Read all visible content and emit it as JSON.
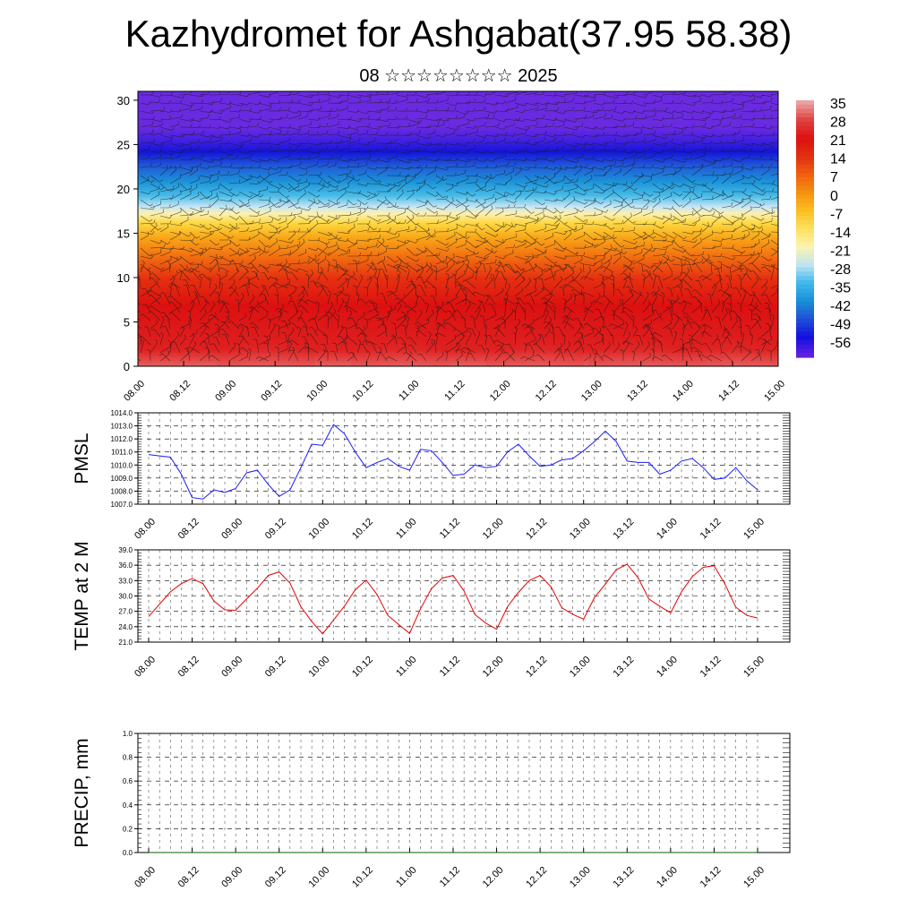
{
  "title": "Kazhydromet for Ashgabat(37.95 58.38)",
  "subtitle": "08 ☆☆☆☆☆☆☆☆ 2025",
  "time_labels": [
    "08.00",
    "08.12",
    "09.00",
    "09.12",
    "10.00",
    "10.12",
    "11.00",
    "11.12",
    "12.00",
    "12.12",
    "13.00",
    "13.12",
    "14.00",
    "14.12",
    "15.00"
  ],
  "colors": {
    "pmsl_line": "#1a1aff",
    "temp_line": "#e60000",
    "precip_line": "#006400",
    "colorbar": [
      "#e9a2a2",
      "#e04040",
      "#dd1010",
      "#e03010",
      "#f06010",
      "#f69010",
      "#fbbe20",
      "#fde060",
      "#fdf3b0",
      "#c0e4f4",
      "#40b8ec",
      "#1890d8",
      "#2050d8",
      "#1010e0",
      "#6020e0"
    ]
  },
  "chart_data": [
    {
      "type": "heatmap",
      "description_of_panel": "cross-section",
      "xlabel": "",
      "ylabel": "",
      "ylim": [
        0,
        31
      ],
      "y_ticks": [
        0,
        5,
        10,
        15,
        20,
        25,
        30
      ],
      "colorbar_labels": [
        "35",
        "28",
        "21",
        "14",
        "7",
        "0",
        "-7",
        "-14",
        "-21",
        "-28",
        "-35",
        "-42",
        "-49",
        "-56"
      ],
      "wind_barbs": true
    },
    {
      "type": "line",
      "ylabel": "PMSL",
      "ylim": [
        1007.0,
        1014.0
      ],
      "y_ticks": [
        "1007.0",
        "1008.0",
        "1009.0",
        "1010.0",
        "1011.0",
        "1012.0",
        "1013.0",
        "1014.0"
      ],
      "x_hours": [
        0,
        3,
        6,
        9,
        12,
        15,
        18,
        21,
        24,
        27,
        30,
        33,
        36,
        39,
        42,
        45,
        48,
        51,
        54,
        57,
        60,
        63,
        66,
        69,
        72,
        75,
        78,
        81,
        84,
        87,
        90,
        93,
        96,
        99,
        102,
        105,
        108,
        111,
        114,
        117,
        120,
        123,
        126,
        129,
        132,
        135,
        138,
        141,
        144,
        147,
        150,
        153,
        156,
        159,
        162,
        165,
        168
      ],
      "values": [
        1010.8,
        1010.7,
        1010.6,
        1009.3,
        1007.5,
        1007.4,
        1008.1,
        1007.9,
        1008.2,
        1009.4,
        1009.6,
        1008.5,
        1007.6,
        1008.1,
        1009.8,
        1011.6,
        1011.5,
        1013.1,
        1012.4,
        1011.0,
        1009.8,
        1010.2,
        1010.5,
        1009.9,
        1009.6,
        1011.2,
        1011.1,
        1010.2,
        1009.2,
        1009.3,
        1010.0,
        1009.8,
        1009.9,
        1011.0,
        1011.6,
        1010.7,
        1009.9,
        1010.0,
        1010.4,
        1010.5,
        1011.1,
        1011.8,
        1012.6,
        1011.8,
        1010.3,
        1010.2,
        1010.2,
        1009.3,
        1009.6,
        1010.3,
        1010.5,
        1009.8,
        1008.9,
        1009.0,
        1009.8,
        1008.8,
        1008.1
      ]
    },
    {
      "type": "line",
      "ylabel": "TEMP at 2 M",
      "ylim": [
        21.0,
        39.0
      ],
      "y_ticks": [
        "21.0",
        "24.0",
        "27.0",
        "30.0",
        "33.0",
        "36.0",
        "39.0"
      ],
      "x_hours": [
        0,
        3,
        6,
        9,
        12,
        15,
        18,
        21,
        24,
        27,
        30,
        33,
        36,
        39,
        42,
        45,
        48,
        51,
        54,
        57,
        60,
        63,
        66,
        69,
        72,
        75,
        78,
        81,
        84,
        87,
        90,
        93,
        96,
        99,
        102,
        105,
        108,
        111,
        114,
        117,
        120,
        123,
        126,
        129,
        132,
        135,
        138,
        141,
        144,
        147,
        150,
        153,
        156,
        159,
        162,
        165,
        168
      ],
      "values": [
        26.0,
        28.4,
        30.8,
        32.4,
        33.4,
        32.4,
        29.0,
        27.3,
        27.2,
        29.4,
        31.5,
        34.0,
        34.7,
        32.5,
        27.9,
        25.0,
        22.6,
        25.3,
        28.0,
        31.2,
        33.1,
        30.3,
        26.2,
        24.4,
        22.7,
        27.5,
        31.4,
        33.5,
        34.0,
        31.0,
        26.4,
        24.7,
        23.5,
        27.9,
        30.7,
        33.0,
        34.0,
        31.8,
        27.7,
        26.4,
        25.5,
        29.7,
        32.3,
        35.1,
        36.2,
        33.6,
        29.4,
        28.0,
        26.7,
        30.8,
        33.8,
        35.6,
        35.9,
        32.3,
        27.8,
        26.2,
        25.7
      ]
    },
    {
      "type": "line",
      "ylabel": "PRECIP, mm",
      "ylim": [
        0.0,
        1.0
      ],
      "y_ticks": [
        "0.0",
        "0.2",
        "0.4",
        "0.6",
        "0.8",
        "1.0"
      ],
      "values_description_none": "",
      "x_hours": [
        0,
        168
      ],
      "values": [
        0.0,
        0.0
      ]
    }
  ]
}
